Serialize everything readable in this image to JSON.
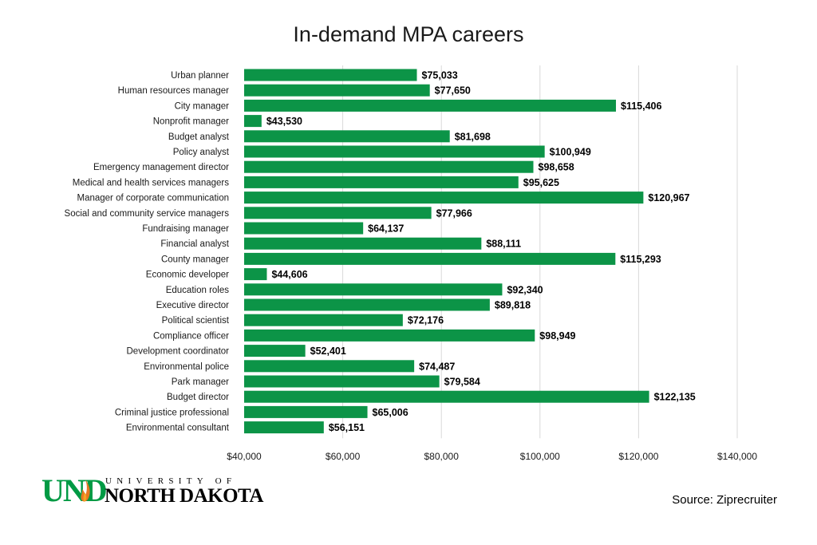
{
  "logo": {
    "mark": "UND",
    "line1": "UNIVERSITY OF",
    "line2": "NORTH DAKOTA",
    "brand_color": "#009A44",
    "icon": "flame-icon"
  },
  "source": "Source: Ziprecruiter",
  "chart_data": {
    "type": "bar",
    "orientation": "horizontal",
    "title": "In-demand MPA careers",
    "xlabel": "",
    "ylabel": "",
    "xlim": [
      40000,
      140000
    ],
    "x_ticks": [
      40000,
      60000,
      80000,
      100000,
      120000,
      140000
    ],
    "x_tick_labels": [
      "$40,000",
      "$60,000",
      "$80,000",
      "$100,000",
      "$120,000",
      "$140,000"
    ],
    "grid": "vertical",
    "legend": "none",
    "bar_color": "#0C9447",
    "categories": [
      "Urban planner",
      "Human resources manager",
      "City manager",
      "Nonprofit manager",
      "Budget analyst",
      "Policy analyst",
      "Emergency management director",
      "Medical and health services managers",
      "Manager of corporate communication",
      "Social and community service managers",
      "Fundraising manager",
      "Financial analyst",
      "County manager",
      "Economic developer",
      "Education roles",
      "Executive director",
      "Political scientist",
      "Compliance officer",
      "Development coordinator",
      "Environmental police",
      "Park manager",
      "Budget director",
      "Criminal justice professional",
      "Environmental consultant"
    ],
    "values": [
      75033,
      77650,
      115406,
      43530,
      81698,
      100949,
      98658,
      95625,
      120967,
      77966,
      64137,
      88111,
      115293,
      44606,
      92340,
      89818,
      72176,
      98949,
      52401,
      74487,
      79584,
      122135,
      65006,
      56151
    ],
    "value_labels": [
      "$75,033",
      "$77,650",
      "$115,406",
      "$43,530",
      "$81,698",
      "$100,949",
      "$98,658",
      "$95,625",
      "$120,967",
      "$77,966",
      "$64,137",
      "$88,111",
      "$115,293",
      "$44,606",
      "$92,340",
      "$89,818",
      "$72,176",
      "$98,949",
      "$52,401",
      "$74,487",
      "$79,584",
      "$122,135",
      "$65,006",
      "$56,151"
    ]
  }
}
